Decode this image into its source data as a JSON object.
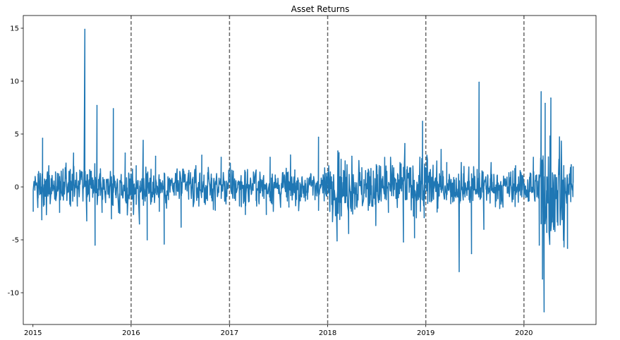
{
  "chart_data": {
    "type": "line",
    "title": "Asset Returns",
    "xlabel": "",
    "ylabel": "",
    "xlim": [
      "2014-11-26",
      "2020-09-25"
    ],
    "ylim": [
      -13.0,
      16.2
    ],
    "x_ticks": [
      "2015",
      "2016",
      "2017",
      "2018",
      "2019",
      "2020"
    ],
    "y_ticks": [
      15,
      10,
      5,
      0,
      -5,
      -10
    ],
    "vertical_lines": [
      "2016-01-01",
      "2017-01-01",
      "2018-01-01",
      "2019-01-01",
      "2020-01-01"
    ],
    "grid": false,
    "series": [
      {
        "name": "",
        "color": "#1f77b4",
        "points": [
          [
            "2015-01-02",
            -2.3
          ],
          [
            "2015-01-20",
            1.2
          ],
          [
            "2015-02-03",
            -3.1
          ],
          [
            "2015-02-06",
            4.6
          ],
          [
            "2015-03-01",
            2.0
          ],
          [
            "2015-04-10",
            -2.4
          ],
          [
            "2015-05-01",
            1.8
          ],
          [
            "2015-06-01",
            3.2
          ],
          [
            "2015-06-15",
            -1.8
          ],
          [
            "2015-07-13",
            14.9
          ],
          [
            "2015-07-20",
            -3.2
          ],
          [
            "2015-08-20",
            -5.5
          ],
          [
            "2015-08-27",
            7.7
          ],
          [
            "2015-09-15",
            -2.4
          ],
          [
            "2015-10-20",
            -3.0
          ],
          [
            "2015-10-27",
            7.4
          ],
          [
            "2015-11-20",
            -2.5
          ],
          [
            "2015-12-10",
            3.2
          ],
          [
            "2016-01-10",
            -2.6
          ],
          [
            "2016-01-20",
            2.0
          ],
          [
            "2016-02-01",
            -3.5
          ],
          [
            "2016-02-15",
            4.4
          ],
          [
            "2016-03-01",
            -5.0
          ],
          [
            "2016-04-01",
            2.9
          ],
          [
            "2016-04-15",
            -2.3
          ],
          [
            "2016-05-03",
            -5.4
          ],
          [
            "2016-06-20",
            1.7
          ],
          [
            "2016-07-05",
            -3.8
          ],
          [
            "2016-08-01",
            1.3
          ],
          [
            "2016-09-20",
            3.0
          ],
          [
            "2016-11-09",
            -2.2
          ],
          [
            "2016-12-01",
            2.8
          ],
          [
            "2017-01-15",
            1.5
          ],
          [
            "2017-03-01",
            -2.6
          ],
          [
            "2017-04-10",
            1.6
          ],
          [
            "2017-05-18",
            -2.6
          ],
          [
            "2017-06-01",
            2.8
          ],
          [
            "2017-08-10",
            -1.9
          ],
          [
            "2017-09-01",
            1.6
          ],
          [
            "2017-11-15",
            -1.2
          ],
          [
            "2017-11-28",
            4.7
          ],
          [
            "2018-02-05",
            -5.1
          ],
          [
            "2018-02-08",
            3.4
          ],
          [
            "2018-03-20",
            -4.4
          ],
          [
            "2018-04-01",
            2.9
          ],
          [
            "2018-06-01",
            -2.2
          ],
          [
            "2018-07-01",
            2.1
          ],
          [
            "2018-08-15",
            -2.4
          ],
          [
            "2018-10-10",
            -5.2
          ],
          [
            "2018-10-15",
            4.1
          ],
          [
            "2018-11-20",
            -4.8
          ],
          [
            "2018-12-20",
            6.2
          ],
          [
            "2018-12-26",
            -2.9
          ],
          [
            "2019-01-05",
            3.0
          ],
          [
            "2019-02-15",
            -2.0
          ],
          [
            "2019-03-20",
            2.3
          ],
          [
            "2019-05-05",
            -8.0
          ],
          [
            "2019-05-13",
            2.3
          ],
          [
            "2019-06-20",
            -6.3
          ],
          [
            "2019-07-18",
            9.9
          ],
          [
            "2019-08-05",
            -4.0
          ],
          [
            "2019-09-01",
            2.3
          ],
          [
            "2019-10-15",
            -1.9
          ],
          [
            "2019-12-01",
            2.0
          ],
          [
            "2020-01-20",
            -1.3
          ],
          [
            "2020-02-05",
            2.8
          ],
          [
            "2020-02-27",
            -5.5
          ],
          [
            "2020-03-05",
            9.0
          ],
          [
            "2020-03-10",
            -8.7
          ],
          [
            "2020-03-16",
            -11.8
          ],
          [
            "2020-03-20",
            7.9
          ],
          [
            "2020-03-26",
            -4.3
          ],
          [
            "2020-04-10",
            8.4
          ],
          [
            "2020-04-25",
            -4.2
          ],
          [
            "2020-05-10",
            2.6
          ],
          [
            "2020-06-11",
            -5.8
          ],
          [
            "2020-06-25",
            2.1
          ],
          [
            "2020-07-02",
            1.9
          ]
        ]
      }
    ]
  }
}
